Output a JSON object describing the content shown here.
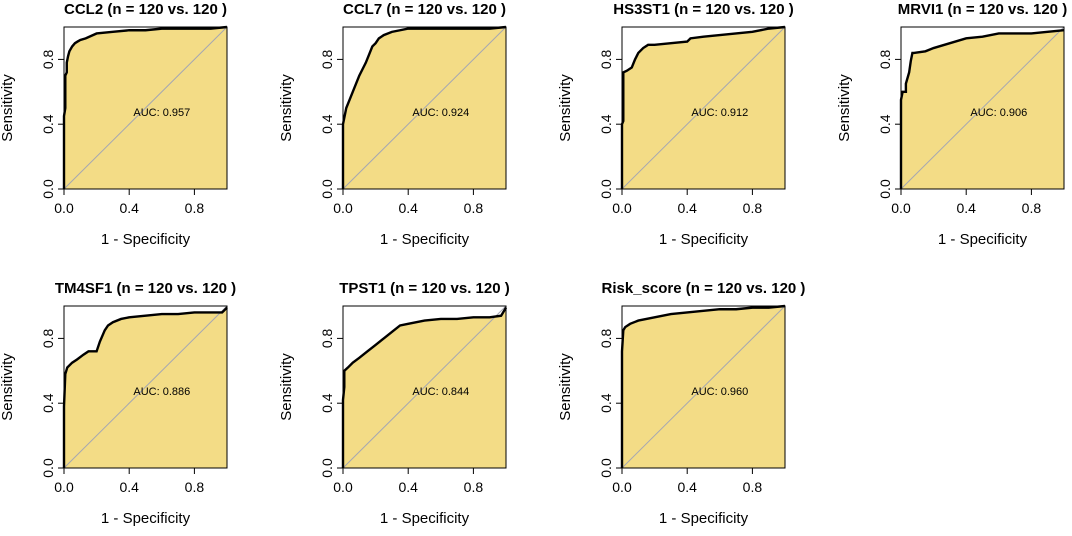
{
  "figure": {
    "panel_fill": "#F3DC86",
    "curve_color": "#000000",
    "diagonal_color": "#A5A7B2"
  },
  "chart_data": [
    {
      "type": "line",
      "gene": "CCL2",
      "title": "CCL2 (n = 120 vs. 120 )",
      "xlabel": "1 - Specificity",
      "ylabel": "Sensitivity",
      "xlim": [
        0,
        1
      ],
      "ylim": [
        0,
        1
      ],
      "xticks": [
        "0.0",
        "0.4",
        "0.8"
      ],
      "yticks": [
        "0.0",
        "0.4",
        "0.8"
      ],
      "auc_label": "AUC: 0.957",
      "x": [
        0,
        0,
        0.008,
        0.008,
        0.017,
        0.017,
        0.025,
        0.033,
        0.05,
        0.067,
        0.083,
        0.1,
        0.133,
        0.2,
        0.3,
        0.4,
        0.5,
        0.6,
        0.7,
        0.8,
        0.9,
        1.0
      ],
      "y": [
        0,
        0.45,
        0.5,
        0.7,
        0.72,
        0.78,
        0.82,
        0.85,
        0.88,
        0.9,
        0.91,
        0.92,
        0.93,
        0.96,
        0.97,
        0.98,
        0.98,
        0.99,
        0.99,
        0.99,
        0.99,
        1.0
      ]
    },
    {
      "type": "line",
      "gene": "CCL7",
      "title": "CCL7 (n = 120 vs. 120 )",
      "xlabel": "1 - Specificity",
      "ylabel": "Sensitivity",
      "xlim": [
        0,
        1
      ],
      "ylim": [
        0,
        1
      ],
      "xticks": [
        "0.0",
        "0.4",
        "0.8"
      ],
      "yticks": [
        "0.0",
        "0.4",
        "0.8"
      ],
      "auc_label": "AUC: 0.924",
      "x": [
        0,
        0,
        0.01,
        0.02,
        0.04,
        0.06,
        0.08,
        0.1,
        0.12,
        0.14,
        0.16,
        0.18,
        0.2,
        0.22,
        0.25,
        0.3,
        0.35,
        0.4,
        0.5,
        0.6,
        0.7,
        0.8,
        0.9,
        1.0
      ],
      "y": [
        0,
        0.4,
        0.45,
        0.5,
        0.55,
        0.6,
        0.65,
        0.7,
        0.74,
        0.78,
        0.83,
        0.88,
        0.9,
        0.93,
        0.95,
        0.97,
        0.98,
        0.99,
        0.99,
        0.99,
        0.99,
        0.99,
        0.99,
        1.0
      ]
    },
    {
      "type": "line",
      "gene": "HS3ST1",
      "title": "HS3ST1 (n = 120 vs. 120 )",
      "xlabel": "1 - Specificity",
      "ylabel": "Sensitivity",
      "xlim": [
        0,
        1
      ],
      "ylim": [
        0,
        1
      ],
      "xticks": [
        "0.0",
        "0.4",
        "0.8"
      ],
      "yticks": [
        "0.0",
        "0.4",
        "0.8"
      ],
      "auc_label": "AUC: 0.912",
      "x": [
        0,
        0,
        0.008,
        0.008,
        0.03,
        0.06,
        0.08,
        0.1,
        0.13,
        0.16,
        0.2,
        0.3,
        0.4,
        0.42,
        0.5,
        0.6,
        0.7,
        0.8,
        0.9,
        1.0
      ],
      "y": [
        0,
        0.4,
        0.42,
        0.72,
        0.73,
        0.75,
        0.8,
        0.84,
        0.87,
        0.89,
        0.89,
        0.9,
        0.91,
        0.93,
        0.94,
        0.95,
        0.96,
        0.97,
        0.99,
        1.0
      ]
    },
    {
      "type": "line",
      "gene": "MRVI1",
      "title": "MRVI1 (n = 120 vs. 120 )",
      "xlabel": "1 - Specificity",
      "ylabel": "Sensitivity",
      "xlim": [
        0,
        1
      ],
      "ylim": [
        0,
        1
      ],
      "xticks": [
        "0.0",
        "0.4",
        "0.8"
      ],
      "yticks": [
        "0.0",
        "0.4",
        "0.8"
      ],
      "auc_label": "AUC: 0.906",
      "x": [
        0,
        0,
        0.01,
        0.03,
        0.03,
        0.05,
        0.06,
        0.07,
        0.08,
        0.15,
        0.2,
        0.3,
        0.4,
        0.5,
        0.6,
        0.7,
        0.8,
        0.9,
        1.0
      ],
      "y": [
        0,
        0.55,
        0.6,
        0.6,
        0.65,
        0.72,
        0.79,
        0.84,
        0.84,
        0.85,
        0.87,
        0.9,
        0.93,
        0.94,
        0.96,
        0.96,
        0.96,
        0.97,
        0.98
      ]
    },
    {
      "type": "line",
      "gene": "TM4SF1",
      "title": "TM4SF1 (n = 120 vs. 120 )",
      "xlabel": "1 - Specificity",
      "ylabel": "Sensitivity",
      "xlim": [
        0,
        1
      ],
      "ylim": [
        0,
        1
      ],
      "xticks": [
        "0.0",
        "0.4",
        "0.8"
      ],
      "yticks": [
        "0.0",
        "0.4",
        "0.8"
      ],
      "auc_label": "AUC: 0.886",
      "x": [
        0,
        0,
        0.008,
        0.02,
        0.05,
        0.08,
        0.12,
        0.15,
        0.2,
        0.22,
        0.25,
        0.27,
        0.3,
        0.35,
        0.4,
        0.5,
        0.6,
        0.7,
        0.8,
        0.9,
        0.97,
        1.0
      ],
      "y": [
        0,
        0.38,
        0.58,
        0.62,
        0.65,
        0.67,
        0.7,
        0.72,
        0.72,
        0.78,
        0.85,
        0.88,
        0.9,
        0.92,
        0.93,
        0.94,
        0.95,
        0.95,
        0.96,
        0.96,
        0.96,
        0.99
      ]
    },
    {
      "type": "line",
      "gene": "TPST1",
      "title": "TPST1 (n = 120 vs. 120 )",
      "xlabel": "1 - Specificity",
      "ylabel": "Sensitivity",
      "xlim": [
        0,
        1
      ],
      "ylim": [
        0,
        1
      ],
      "xticks": [
        "0.0",
        "0.4",
        "0.8"
      ],
      "yticks": [
        "0.0",
        "0.4",
        "0.8"
      ],
      "auc_label": "AUC: 0.844",
      "x": [
        0,
        0,
        0.008,
        0.008,
        0.03,
        0.06,
        0.1,
        0.15,
        0.2,
        0.25,
        0.3,
        0.35,
        0.4,
        0.5,
        0.6,
        0.7,
        0.8,
        0.9,
        0.97,
        1.0
      ],
      "y": [
        0,
        0.42,
        0.5,
        0.6,
        0.62,
        0.65,
        0.68,
        0.72,
        0.76,
        0.8,
        0.84,
        0.88,
        0.89,
        0.91,
        0.92,
        0.92,
        0.93,
        0.93,
        0.94,
        0.99
      ]
    },
    {
      "type": "line",
      "gene": "Risk_score",
      "title": "Risk_score (n = 120 vs. 120 )",
      "xlabel": "1 - Specificity",
      "ylabel": "Sensitivity",
      "xlim": [
        0,
        1
      ],
      "ylim": [
        0,
        1
      ],
      "xticks": [
        "0.0",
        "0.4",
        "0.8"
      ],
      "yticks": [
        "0.0",
        "0.4",
        "0.8"
      ],
      "auc_label": "AUC: 0.960",
      "x": [
        0,
        0,
        0.008,
        0.02,
        0.05,
        0.1,
        0.2,
        0.3,
        0.4,
        0.5,
        0.6,
        0.7,
        0.8,
        0.9,
        1.0
      ],
      "y": [
        0,
        0.72,
        0.85,
        0.87,
        0.89,
        0.91,
        0.93,
        0.95,
        0.96,
        0.97,
        0.98,
        0.98,
        0.99,
        0.99,
        1.0
      ]
    }
  ]
}
